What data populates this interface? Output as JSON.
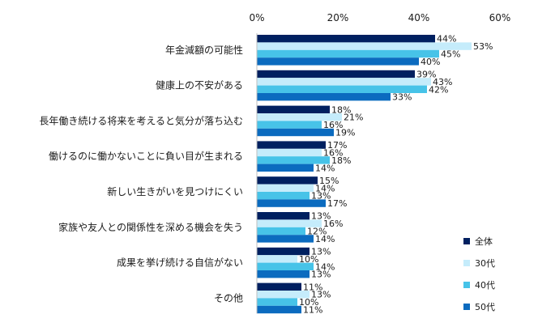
{
  "chart_data": {
    "type": "bar",
    "orientation": "horizontal",
    "xlim": [
      0,
      60
    ],
    "xticks": [
      "0%",
      "20%",
      "40%",
      "60%"
    ],
    "grid": false,
    "legend_position": "bottom-right",
    "categories": [
      "年金減額の可能性",
      "健康上の不安がある",
      "長年働き続ける将来を考えると気分が落ち込む",
      "働けるのに働かないことに負い目が生まれる",
      "新しい生きがいを見つけにくい",
      "家族や友人との関係性を深める機会を失う",
      "成果を挙げ続ける自信がない",
      "その他"
    ],
    "series": [
      {
        "name": "全体",
        "color": "#002060",
        "values": [
          44,
          39,
          18,
          17,
          15,
          13,
          13,
          11
        ]
      },
      {
        "name": "30代",
        "color": "#c5ecfb",
        "values": [
          53,
          43,
          21,
          16,
          14,
          16,
          10,
          13
        ]
      },
      {
        "name": "40代",
        "color": "#47c3e8",
        "values": [
          45,
          42,
          16,
          18,
          13,
          12,
          14,
          10
        ]
      },
      {
        "name": "50代",
        "color": "#0b6bbf",
        "values": [
          40,
          33,
          19,
          14,
          17,
          14,
          13,
          11
        ]
      }
    ]
  }
}
